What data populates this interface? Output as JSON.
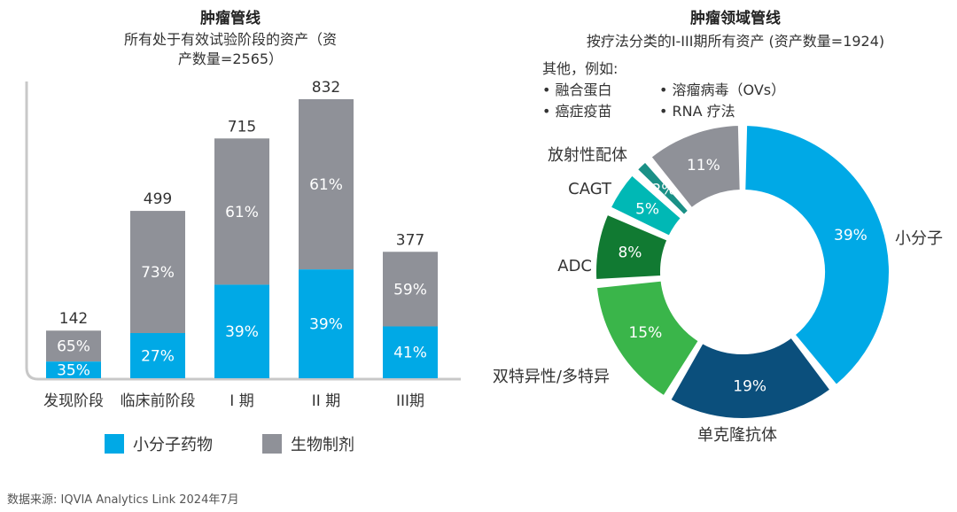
{
  "colors": {
    "small_molecule": "#00a9e6",
    "biologic": "#8f9198",
    "axis": "#c8c8c8",
    "donut": [
      "#00a9e6",
      "#0b4f7c",
      "#3ab54a",
      "#117a32",
      "#00b8b5",
      "#1a9086",
      "#8f9198"
    ]
  },
  "left": {
    "title": "肿瘤管线",
    "subtitle_line1": "所有处于有效试验阶段的资产（资",
    "subtitle_line2": "产数量=2565）",
    "legend": [
      {
        "label": "小分子药物",
        "color_key": "small_molecule"
      },
      {
        "label": "生物制剂",
        "color_key": "biologic"
      }
    ]
  },
  "right": {
    "title": "肿瘤领域管线",
    "subtitle": "按疗法分类的I-III期所有资产 (资产数量=1924)",
    "others_heading": "其他，例如:",
    "others_items": [
      "融合蛋白",
      "溶瘤病毒（OVs）",
      "癌症疫苗",
      "RNA 疗法"
    ]
  },
  "source": "数据来源: IQVIA Analytics Link 2024年7月",
  "chart_data": [
    {
      "type": "bar",
      "stacked": true,
      "categories": [
        "发现阶段",
        "临床前阶段",
        "I 期",
        "II 期",
        "III期"
      ],
      "totals": [
        142,
        499,
        715,
        832,
        377
      ],
      "series": [
        {
          "name": "小分子药物",
          "percent": [
            35,
            27,
            39,
            39,
            41
          ],
          "color_key": "small_molecule"
        },
        {
          "name": "生物制剂",
          "percent": [
            65,
            73,
            61,
            61,
            59
          ],
          "color_key": "biologic"
        }
      ],
      "ylim": [
        0,
        900
      ],
      "grid": false
    },
    {
      "type": "pie",
      "donut": true,
      "slices": [
        {
          "label": "小分子",
          "value": 39
        },
        {
          "label": "单克隆抗体",
          "value": 19
        },
        {
          "label": "双特异性/多特异",
          "value": 15
        },
        {
          "label": "ADC",
          "value": 8
        },
        {
          "label": "CAGT",
          "value": 5
        },
        {
          "label": "放射性配体",
          "value": 2
        },
        {
          "label": "",
          "value": 11
        }
      ],
      "value_suffix": "%"
    }
  ]
}
